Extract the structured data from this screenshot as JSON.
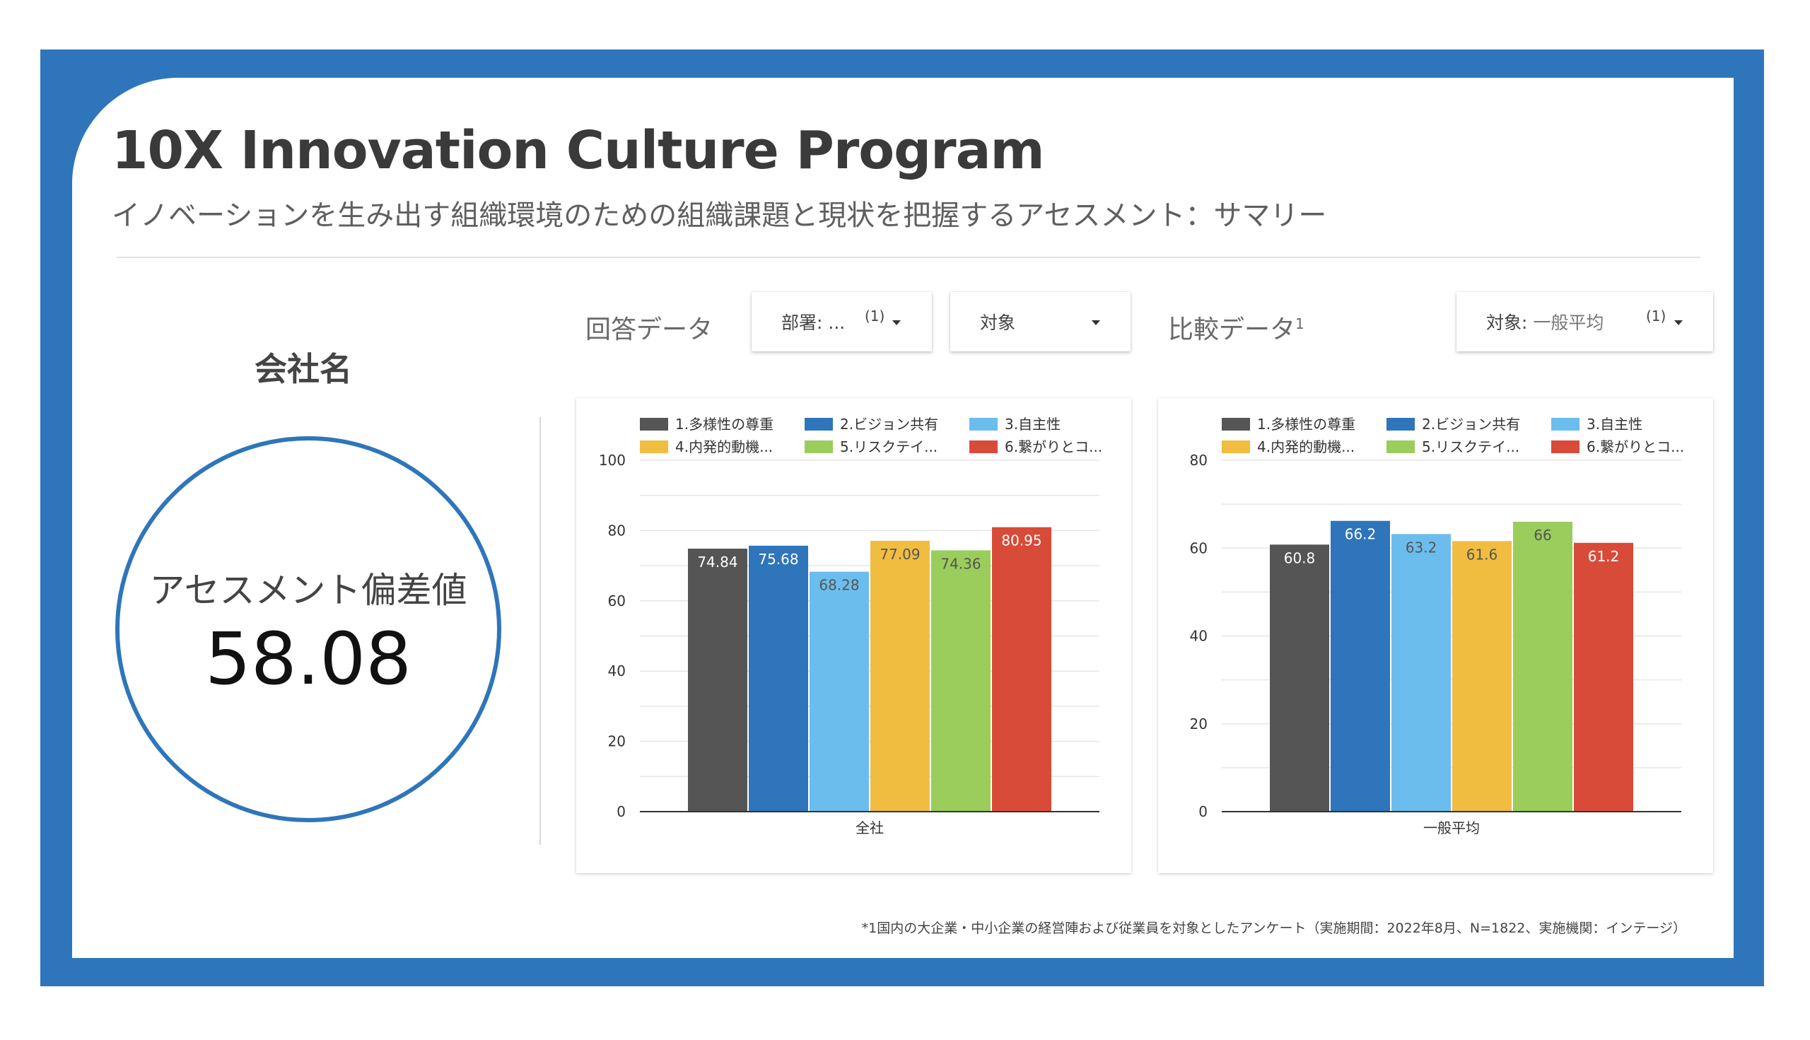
{
  "header": {
    "title": "10X Innovation Culture Program",
    "subtitle": "イノベーションを生み出す組織環境のための組織課題と現状を把握するアセスメント：サマリー"
  },
  "company": {
    "name": "会社名",
    "score_label": "アセスメント偏差値",
    "score_value": "58.08"
  },
  "response_section": {
    "label": "回答データ",
    "dept_dropdown": {
      "label": "部署: ...",
      "count": "(1)"
    },
    "target_dropdown": {
      "label": "対象"
    }
  },
  "compare_section": {
    "label": "比較データ",
    "footnote_marker": "1",
    "target_dropdown": {
      "label_prefix": "対象:",
      "label_value": "一般平均",
      "count": "(1)"
    }
  },
  "footnote": "*1国内の大企業・中小企業の経営陣および従業員を対象としたアンケート（実施期間：2022年8月、N=1822、実施機関：インテージ）",
  "chart_data": [
    {
      "type": "bar",
      "categories": [
        "全社"
      ],
      "series": [
        {
          "name": "1.多様性の尊重",
          "values": [
            74.84
          ],
          "label": "74.84",
          "color": "#555555"
        },
        {
          "name": "2.ビジョン共有",
          "values": [
            75.68
          ],
          "label": "75.68",
          "color": "#2f75bb"
        },
        {
          "name": "3.自主性",
          "values": [
            68.28
          ],
          "label": "68.28",
          "color": "#6bbdee"
        },
        {
          "name": "4.内発的動機...",
          "values": [
            77.09
          ],
          "label": "77.09",
          "color": "#f1bd41"
        },
        {
          "name": "5.リスクテイ...",
          "values": [
            74.36
          ],
          "label": "74.36",
          "color": "#9acd5c"
        },
        {
          "name": "6.繋がりとコ...",
          "values": [
            80.95
          ],
          "label": "80.95",
          "color": "#d84b38"
        }
      ],
      "ylim": [
        0,
        100
      ],
      "yticks": [
        0,
        20,
        40,
        60,
        80,
        100
      ],
      "legend": "top",
      "grid": true
    },
    {
      "type": "bar",
      "categories": [
        "一般平均"
      ],
      "series": [
        {
          "name": "1.多様性の尊重",
          "values": [
            60.8
          ],
          "label": "60.8",
          "color": "#555555"
        },
        {
          "name": "2.ビジョン共有",
          "values": [
            66.2
          ],
          "label": "66.2",
          "color": "#2f75bb"
        },
        {
          "name": "3.自主性",
          "values": [
            63.2
          ],
          "label": "63.2",
          "color": "#6bbdee"
        },
        {
          "name": "4.内発的動機...",
          "values": [
            61.6
          ],
          "label": "61.6",
          "color": "#f1bd41"
        },
        {
          "name": "5.リスクテイ...",
          "values": [
            66
          ],
          "label": "66",
          "color": "#9acd5c"
        },
        {
          "name": "6.繋がりとコ...",
          "values": [
            61.2
          ],
          "label": "61.2",
          "color": "#d84b38"
        }
      ],
      "ylim": [
        0,
        80
      ],
      "yticks": [
        0,
        20,
        40,
        60,
        80
      ],
      "legend": "top",
      "grid": true
    }
  ]
}
